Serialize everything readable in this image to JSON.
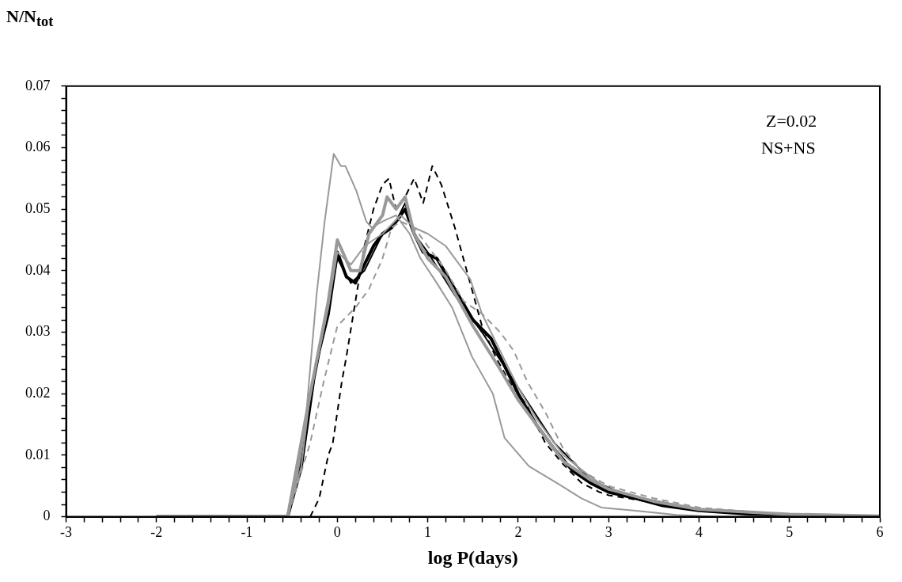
{
  "chart_data": {
    "type": "line",
    "xlabel": "log P(days)",
    "ylabel": "N/N$_{tot}$",
    "annotations": [
      "Z=0.02",
      "NS+NS"
    ],
    "xlim": [
      -3,
      6
    ],
    "ylim": [
      0,
      0.07
    ],
    "grid": false,
    "legend": false,
    "marker": "none",
    "xticks": [
      -3,
      {
        "value": -2.8,
        "label": null
      },
      {
        "value": -2.6,
        "label": null
      },
      {
        "value": -2.4,
        "label": null
      },
      {
        "value": -2.2,
        "label": null
      },
      -2,
      {
        "value": -1.8,
        "label": null
      },
      {
        "value": -1.6,
        "label": null
      },
      {
        "value": -1.4,
        "label": null
      },
      {
        "value": -1.2,
        "label": null
      },
      -1,
      {
        "value": -0.8,
        "label": null
      },
      {
        "value": -0.6,
        "label": null
      },
      {
        "value": -0.4,
        "label": null
      },
      {
        "value": -0.2,
        "label": null
      },
      0,
      {
        "value": 0.2,
        "label": null
      },
      {
        "value": 0.4,
        "label": null
      },
      {
        "value": 0.6,
        "label": null
      },
      {
        "value": 0.8,
        "label": null
      },
      1,
      {
        "value": 1.2,
        "label": null
      },
      {
        "value": 1.4,
        "label": null
      },
      {
        "value": 1.6,
        "label": null
      },
      {
        "value": 1.8,
        "label": null
      },
      2,
      {
        "value": 2.2,
        "label": null
      },
      {
        "value": 2.4,
        "label": null
      },
      {
        "value": 2.6,
        "label": null
      },
      {
        "value": 2.8,
        "label": null
      },
      3,
      {
        "value": 3.2,
        "label": null
      },
      {
        "value": 3.4,
        "label": null
      },
      {
        "value": 3.6,
        "label": null
      },
      {
        "value": 3.8,
        "label": null
      },
      4,
      {
        "value": 4.2,
        "label": null
      },
      {
        "value": 4.4,
        "label": null
      },
      {
        "value": 4.6,
        "label": null
      },
      {
        "value": 4.8,
        "label": null
      },
      5,
      {
        "value": 5.2,
        "label": null
      },
      {
        "value": 5.4,
        "label": null
      },
      {
        "value": 5.6,
        "label": null
      },
      {
        "value": 5.8,
        "label": null
      },
      6
    ],
    "yticks": [
      0,
      {
        "value": 0.002,
        "label": null
      },
      {
        "value": 0.004,
        "label": null
      },
      {
        "value": 0.006,
        "label": null
      },
      {
        "value": 0.008,
        "label": null
      },
      0.01,
      {
        "value": 0.012,
        "label": null
      },
      {
        "value": 0.014,
        "label": null
      },
      {
        "value": 0.016,
        "label": null
      },
      {
        "value": 0.018,
        "label": null
      },
      0.02,
      {
        "value": 0.022,
        "label": null
      },
      {
        "value": 0.024,
        "label": null
      },
      {
        "value": 0.026,
        "label": null
      },
      {
        "value": 0.028,
        "label": null
      },
      0.03,
      {
        "value": 0.032,
        "label": null
      },
      {
        "value": 0.034,
        "label": null
      },
      {
        "value": 0.036,
        "label": null
      },
      {
        "value": 0.038,
        "label": null
      },
      0.04,
      {
        "value": 0.042,
        "label": null
      },
      {
        "value": 0.044,
        "label": null
      },
      {
        "value": 0.046,
        "label": null
      },
      {
        "value": 0.048,
        "label": null
      },
      0.05,
      {
        "value": 0.052,
        "label": null
      },
      {
        "value": 0.054,
        "label": null
      },
      {
        "value": 0.056,
        "label": null
      },
      {
        "value": 0.058,
        "label": null
      },
      0.06,
      {
        "value": 0.062,
        "label": null
      },
      {
        "value": 0.064,
        "label": null
      },
      {
        "value": 0.066,
        "label": null
      },
      {
        "value": 0.068,
        "label": null
      },
      0.07
    ],
    "series": [
      {
        "color": "#999999",
        "line_style": "solid",
        "x": [
          -2,
          -0.55,
          -0.45,
          -0.36,
          -0.23,
          -0.14,
          -0.04,
          0.04,
          0.09,
          0.21,
          0.32,
          0.38,
          0.5,
          0.65,
          0.8,
          0.92,
          1.1,
          1.27,
          1.49,
          1.72,
          1.85,
          2.12,
          2.47,
          2.7,
          2.92,
          3.28,
          3.75,
          4.2,
          6
        ],
        "values": [
          0,
          0,
          0.006,
          0.014,
          0.036,
          0.048,
          0.059,
          0.057,
          0.057,
          0.053,
          0.048,
          0.047,
          0.048,
          0.049,
          0.046,
          0.042,
          0.038,
          0.034,
          0.026,
          0.02,
          0.0128,
          0.0082,
          0.0051,
          0.003,
          0.0015,
          0.001,
          0.0003,
          0,
          0
        ]
      },
      {
        "color": "#999999",
        "line_style": "solid",
        "x": [
          -2,
          -0.55,
          -0.4,
          -0.3,
          -0.1,
          0,
          0.15,
          0.3,
          0.5,
          0.7,
          0.85,
          1,
          1.2,
          1.47,
          1.6,
          1.8,
          2,
          2.2,
          2.5,
          2.8,
          3,
          3.5,
          4,
          5,
          6
        ],
        "values": [
          0,
          0,
          0.008,
          0.02,
          0.034,
          0.043,
          0.041,
          0.044,
          0.046,
          0.049,
          0.047,
          0.046,
          0.044,
          0.0386,
          0.033,
          0.027,
          0.021,
          0.016,
          0.01,
          0.0065,
          0.0045,
          0.0025,
          0.0012,
          0.0003,
          0
        ]
      },
      {
        "color": "#999999",
        "line_style": "dashed",
        "x": [
          -2,
          -0.55,
          -0.3,
          -0.15,
          0,
          0.2,
          0.35,
          0.5,
          0.6,
          0.7,
          0.85,
          1,
          1.2,
          1.4,
          1.6,
          1.8,
          1.95,
          2.1,
          2.3,
          2.5,
          2.7,
          3,
          3.5,
          4,
          5,
          6
        ],
        "values": [
          0,
          0,
          0.012,
          0.022,
          0.031,
          0.034,
          0.037,
          0.042,
          0.047,
          0.048,
          0.047,
          0.044,
          0.04,
          0.035,
          0.033,
          0.03,
          0.027,
          0.022,
          0.017,
          0.011,
          0.0075,
          0.005,
          0.003,
          0.0015,
          0.0003,
          0
        ]
      },
      {
        "color": "#999999",
        "line_style": "solid",
        "x": [
          -2,
          -0.55,
          -0.3,
          -0.1,
          0,
          0.15,
          0.25,
          0.35,
          0.5,
          0.55,
          0.65,
          0.75,
          0.85,
          1,
          1.2,
          1.5,
          1.8,
          2,
          2.3,
          2.5,
          2.8,
          3,
          3.5,
          4,
          5,
          6
        ],
        "values": [
          0,
          0,
          0.02,
          0.035,
          0.045,
          0.04,
          0.04,
          0.046,
          0.049,
          0.052,
          0.05,
          0.052,
          0.046,
          0.042,
          0.039,
          0.031,
          0.024,
          0.019,
          0.013,
          0.009,
          0.006,
          0.0045,
          0.0025,
          0.0012,
          0.0004,
          0.0001
        ]
      },
      {
        "color": "#000000",
        "line_style": "solid",
        "x": [
          -2,
          -0.55,
          -0.4,
          -0.26,
          -0.2,
          -0.1,
          0,
          0.1,
          0.2,
          0.3,
          0.4,
          0.5,
          0.6,
          0.7,
          0.75,
          0.85,
          0.95,
          1.1,
          1.3,
          1.5,
          1.7,
          2,
          2.2,
          2.4,
          2.6,
          2.8,
          3,
          3.3,
          3.6,
          4,
          4.5,
          5,
          6
        ],
        "values": [
          0,
          0,
          0.008,
          0.0225,
          0.027,
          0.033,
          0.043,
          0.039,
          0.038,
          0.041,
          0.044,
          0.046,
          0.047,
          0.049,
          0.05,
          0.046,
          0.043,
          0.042,
          0.037,
          0.032,
          0.029,
          0.02,
          0.015,
          0.011,
          0.0075,
          0.0055,
          0.004,
          0.003,
          0.0018,
          0.001,
          0.0005,
          0.0002,
          0
        ]
      },
      {
        "color": "#000000",
        "line_style": "solid",
        "x": [
          -2,
          -0.55,
          -0.4,
          -0.25,
          -0.1,
          0,
          0.15,
          0.3,
          0.5,
          0.65,
          0.75,
          0.85,
          1,
          1.3,
          1.6,
          2,
          2.4,
          2.8,
          3.2,
          4,
          5,
          6
        ],
        "values": [
          0,
          0,
          0.009,
          0.023,
          0.034,
          0.042,
          0.038,
          0.04,
          0.046,
          0.048,
          0.051,
          0.046,
          0.043,
          0.036,
          0.03,
          0.021,
          0.012,
          0.006,
          0.0035,
          0.0012,
          0.0003,
          0
        ]
      },
      {
        "color": "#000000",
        "line_style": "dashed",
        "x": [
          -0.3,
          -0.2,
          -0.1,
          -0.05,
          0.05,
          0.1,
          0.2,
          0.3,
          0.4,
          0.5,
          0.57,
          0.65,
          0.75,
          0.85,
          0.95,
          1.05,
          1.15,
          1.3,
          1.45,
          1.6,
          1.75,
          1.9,
          2.1,
          2.3,
          2.5,
          2.7,
          2.9,
          3,
          3.3,
          3.6,
          4,
          4.5,
          5,
          6
        ],
        "values": [
          0,
          0.003,
          0.01,
          0.012,
          0.022,
          0.026,
          0.035,
          0.044,
          0.05,
          0.054,
          0.055,
          0.05,
          0.052,
          0.055,
          0.051,
          0.057,
          0.054,
          0.047,
          0.039,
          0.031,
          0.026,
          0.022,
          0.018,
          0.012,
          0.0085,
          0.0055,
          0.004,
          0.0035,
          0.0028,
          0.002,
          0.0012,
          0.0006,
          0.0002,
          0
        ]
      }
    ]
  }
}
